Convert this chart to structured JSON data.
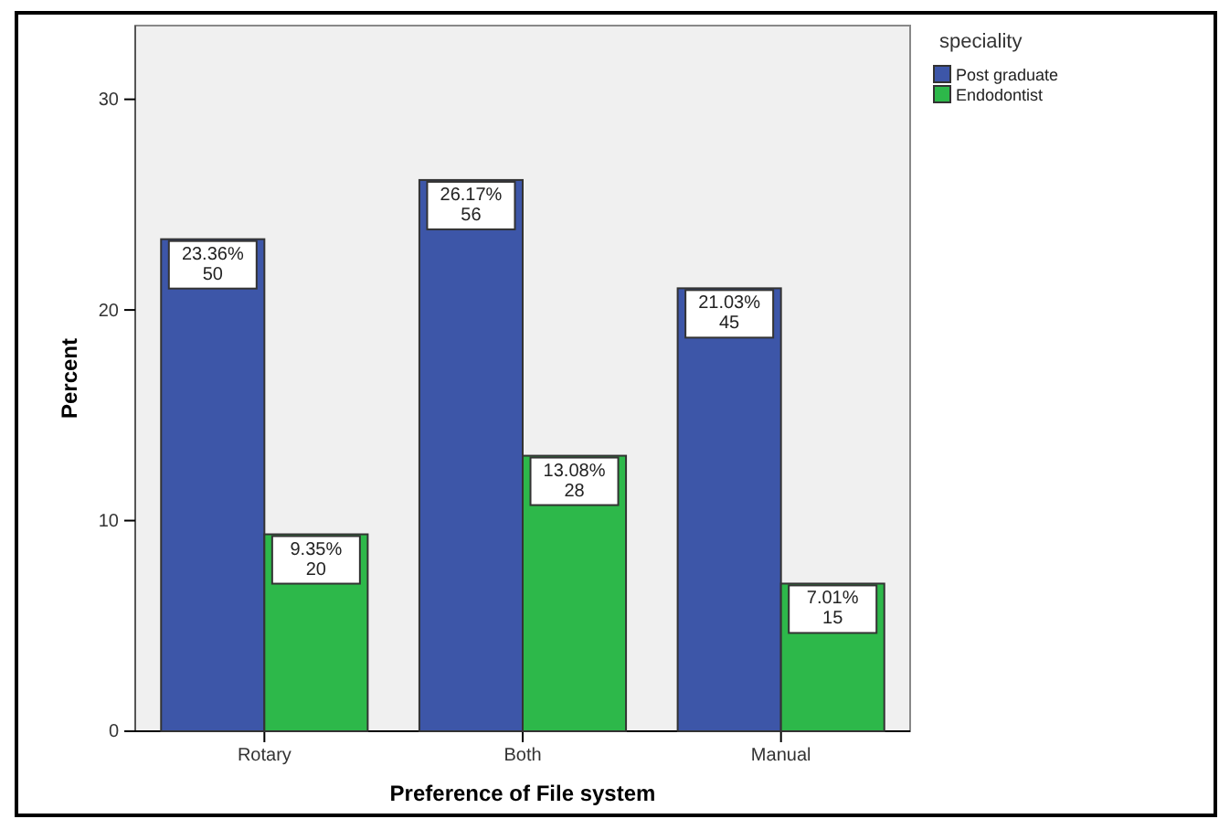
{
  "chart_data": {
    "type": "bar",
    "xlabel": "Preference of File system",
    "ylabel": "Percent",
    "legend_title": "speciality",
    "categories": [
      "Rotary",
      "Both",
      "Manual"
    ],
    "series": [
      {
        "name": "Post graduate",
        "color": "#3d56a8",
        "values": [
          23.36,
          26.17,
          21.03
        ],
        "value_labels": [
          "23.36%\n50",
          "26.17%\n56",
          "21.03%\n45"
        ]
      },
      {
        "name": "Endodontist",
        "color": "#2db84a",
        "values": [
          9.35,
          13.08,
          7.01
        ],
        "value_labels": [
          "9.35%\n20",
          "13.08%\n28",
          "7.01%\n15"
        ]
      }
    ],
    "ylim": [
      0,
      33.5
    ],
    "yticks": [
      0,
      10,
      20,
      30
    ],
    "grid": false,
    "legend": "right"
  }
}
